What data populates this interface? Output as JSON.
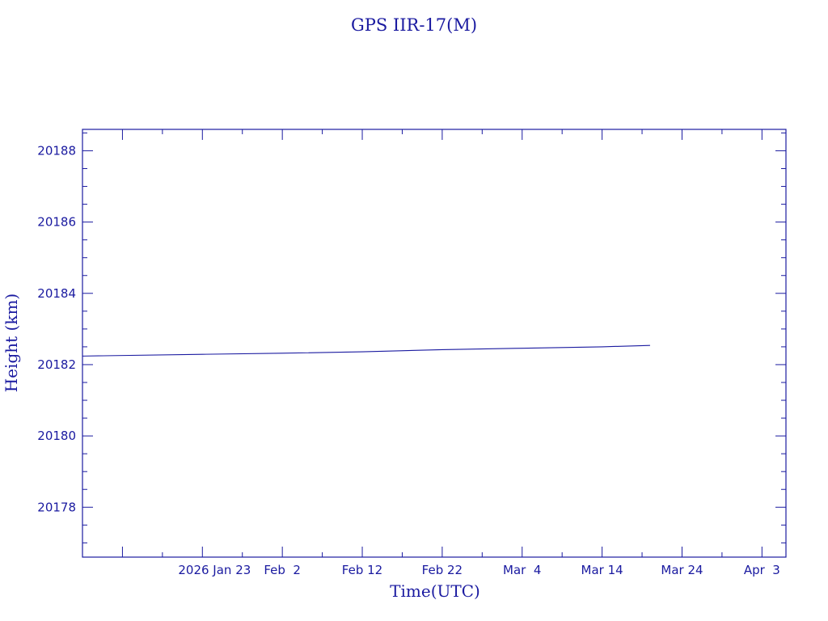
{
  "colors": {
    "ink": "#1a1aa0",
    "background": "#ffffff"
  },
  "chart_data": {
    "type": "line",
    "title": "GPS IIR-17(M)",
    "xlabel": "Time(UTC)",
    "ylabel": "Height (km)",
    "xlim": [
      "2026-01-08",
      "2026-04-06"
    ],
    "ylim": [
      20176.6,
      20188.6
    ],
    "x_ticks": [
      {
        "date": "2026-01-23",
        "label": "2026 Jan 23"
      },
      {
        "date": "2026-02-02",
        "label": "Feb  2"
      },
      {
        "date": "2026-02-12",
        "label": "Feb 12"
      },
      {
        "date": "2026-02-22",
        "label": "Feb 22"
      },
      {
        "date": "2026-03-04",
        "label": "Mar  4"
      },
      {
        "date": "2026-03-14",
        "label": "Mar 14"
      },
      {
        "date": "2026-03-24",
        "label": "Mar 24"
      },
      {
        "date": "2026-04-03",
        "label": "Apr  3"
      }
    ],
    "y_ticks": [
      20178,
      20180,
      20182,
      20184,
      20186,
      20188
    ],
    "grid": false,
    "series": [
      {
        "points": [
          {
            "x": "2026-01-08",
            "y": 20182.24
          },
          {
            "x": "2026-01-23",
            "y": 20182.29
          },
          {
            "x": "2026-02-02",
            "y": 20182.32
          },
          {
            "x": "2026-02-12",
            "y": 20182.36
          },
          {
            "x": "2026-02-22",
            "y": 20182.42
          },
          {
            "x": "2026-03-04",
            "y": 20182.46
          },
          {
            "x": "2026-03-14",
            "y": 20182.5
          },
          {
            "x": "2026-03-20",
            "y": 20182.54
          }
        ]
      }
    ]
  }
}
